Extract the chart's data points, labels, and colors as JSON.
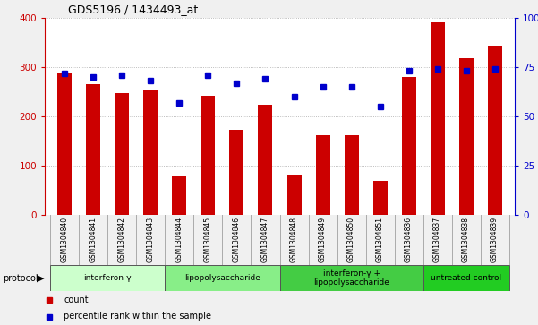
{
  "title": "GDS5196 / 1434493_at",
  "samples": [
    "GSM1304840",
    "GSM1304841",
    "GSM1304842",
    "GSM1304843",
    "GSM1304844",
    "GSM1304845",
    "GSM1304846",
    "GSM1304847",
    "GSM1304848",
    "GSM1304849",
    "GSM1304850",
    "GSM1304851",
    "GSM1304836",
    "GSM1304837",
    "GSM1304838",
    "GSM1304839"
  ],
  "counts": [
    290,
    265,
    248,
    252,
    78,
    242,
    172,
    224,
    80,
    162,
    162,
    70,
    280,
    390,
    318,
    343
  ],
  "percentile_ranks": [
    72,
    70,
    71,
    68,
    57,
    71,
    67,
    69,
    60,
    65,
    65,
    55,
    73,
    74,
    73,
    74
  ],
  "ylim_left": [
    0,
    400
  ],
  "ylim_right": [
    0,
    100
  ],
  "yticks_left": [
    0,
    100,
    200,
    300,
    400
  ],
  "yticks_right": [
    0,
    25,
    50,
    75,
    100
  ],
  "protocol_groups": [
    {
      "label": "interferon-γ",
      "start": 0,
      "end": 3,
      "color": "#ccffcc"
    },
    {
      "label": "lipopolysaccharide",
      "start": 4,
      "end": 7,
      "color": "#88ee88"
    },
    {
      "label": "interferon-γ +\nlipopolysaccharide",
      "start": 8,
      "end": 12,
      "color": "#44cc44"
    },
    {
      "label": "untreated control",
      "start": 13,
      "end": 15,
      "color": "#22cc22"
    }
  ],
  "bar_color": "#cc0000",
  "dot_color": "#0000cc",
  "bar_width": 0.5,
  "plot_bg": "#ffffff",
  "grid_color": "#aaaaaa",
  "left_axis_color": "#cc0000",
  "right_axis_color": "#0000cc",
  "tick_bg_color": "#cccccc",
  "tick_border_color": "#aaaaaa"
}
